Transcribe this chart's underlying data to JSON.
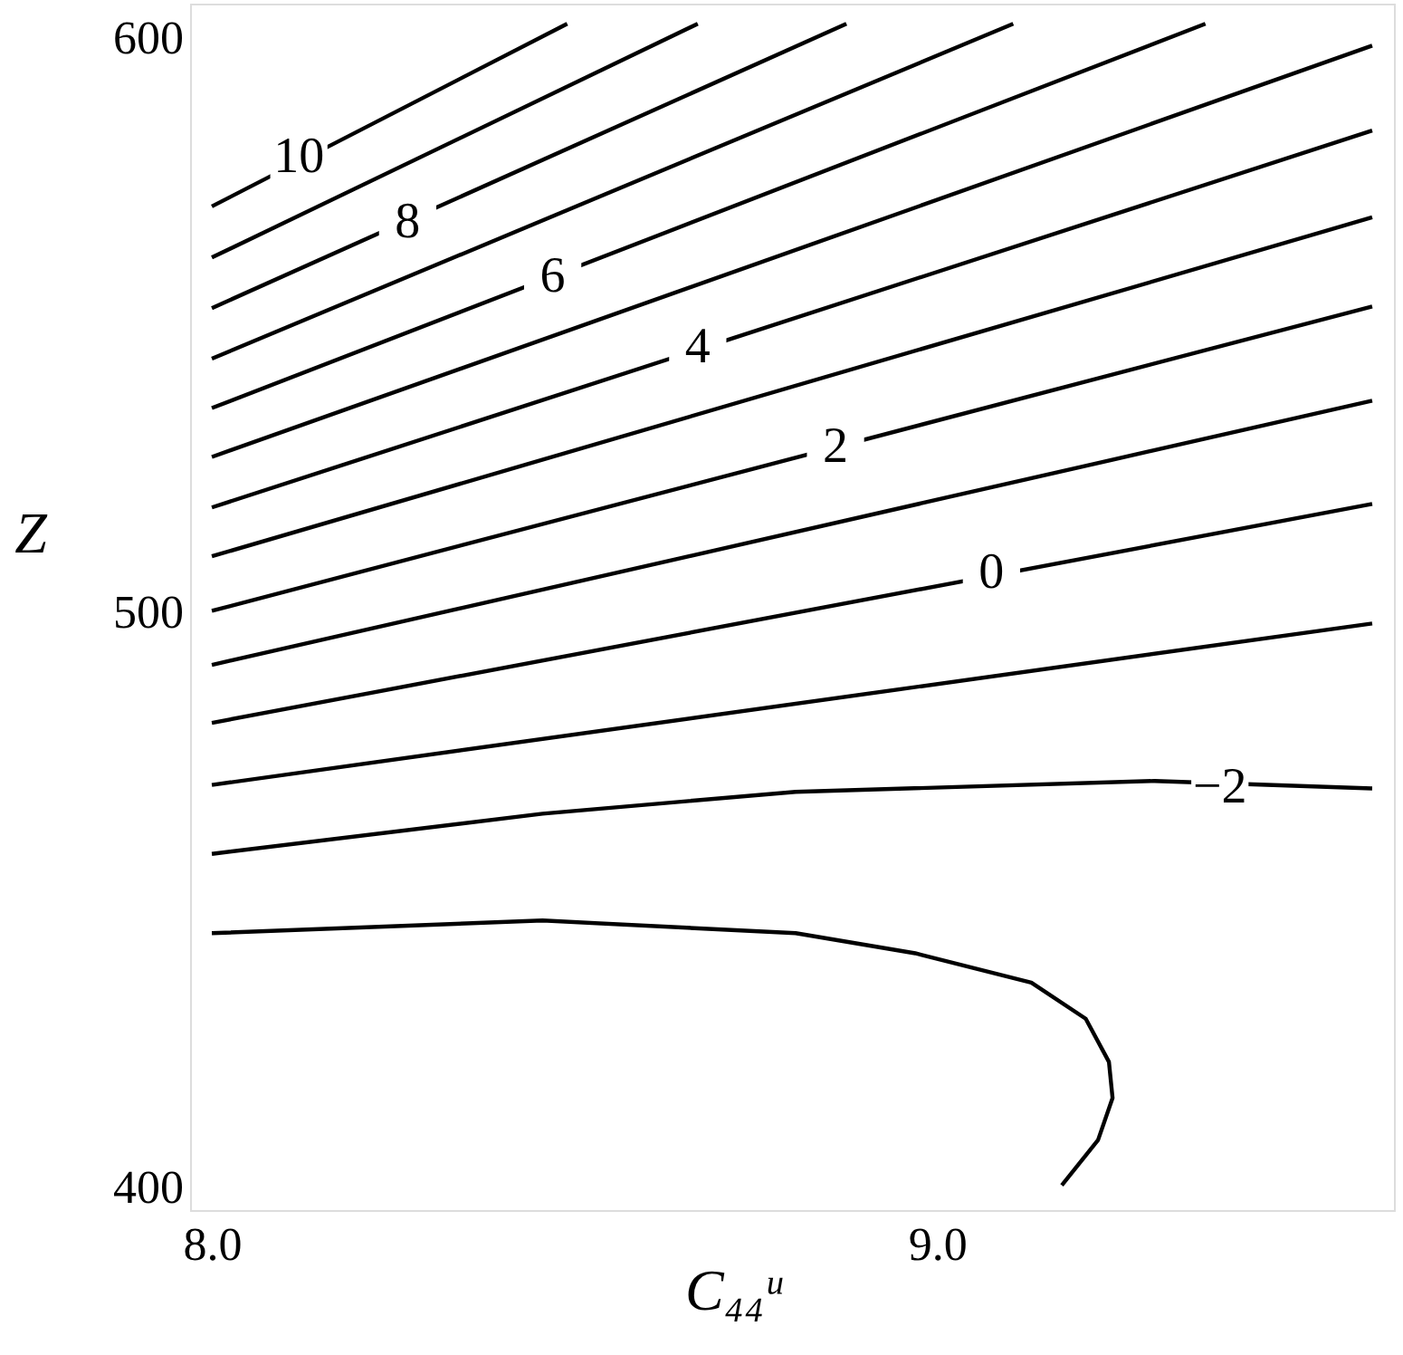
{
  "chart_data": {
    "type": "line",
    "xlabel": "C₄₄ᵘ",
    "ylabel": "Z",
    "xlim": [
      7.97,
      9.63
    ],
    "ylim": [
      396,
      606
    ],
    "xticks": [
      {
        "value": 8,
        "label": "8.0"
      },
      {
        "value": 9,
        "label": "9.0"
      }
    ],
    "yticks": [
      400,
      500,
      600
    ],
    "grid": false,
    "marker": "none",
    "line_style": "solid",
    "series": [
      {
        "color": "#000000",
        "x": [
          8.0,
          8.49
        ],
        "values": [
          570.7,
          602.5
        ]
      },
      {
        "color": "#000000",
        "x": [
          8.0,
          8.67
        ],
        "values": [
          561.8,
          602.5
        ]
      },
      {
        "color": "#000000",
        "x": [
          8.0,
          8.875
        ],
        "values": [
          553.0,
          602.5
        ]
      },
      {
        "color": "#000000",
        "x": [
          8.0,
          9.105
        ],
        "values": [
          544.2,
          602.5
        ]
      },
      {
        "color": "#000000",
        "x": [
          8.0,
          9.37
        ],
        "values": [
          535.6,
          602.5
        ]
      },
      {
        "color": "#000000",
        "x": [
          8.0,
          9.6
        ],
        "values": [
          527.1,
          598.7
        ]
      },
      {
        "color": "#000000",
        "x": [
          8.0,
          9.6
        ],
        "values": [
          518.3,
          583.9
        ]
      },
      {
        "color": "#000000",
        "x": [
          8.0,
          9.6
        ],
        "values": [
          509.8,
          568.8
        ]
      },
      {
        "color": "#000000",
        "x": [
          8.0,
          9.6
        ],
        "values": [
          500.3,
          553.3
        ]
      },
      {
        "color": "#000000",
        "x": [
          8.0,
          9.6
        ],
        "values": [
          490.9,
          536.9
        ]
      },
      {
        "color": "#000000",
        "x": [
          8.0,
          9.6
        ],
        "values": [
          480.8,
          518.9
        ]
      },
      {
        "color": "#000000",
        "x": [
          8.0,
          9.6
        ],
        "values": [
          470.0,
          498.1
        ]
      },
      {
        "color": "#000000",
        "x": [
          8.0,
          8.456,
          8.805,
          9.3,
          9.6
        ],
        "values": [
          458.0,
          465.0,
          468.8,
          470.7,
          469.4
        ]
      },
      {
        "color": "#000000",
        "x": [
          8.0,
          8.456,
          8.805,
          8.97,
          9.13,
          9.205,
          9.237,
          9.242,
          9.222,
          9.172
        ],
        "values": [
          444.2,
          446.4,
          444.2,
          440.7,
          435.6,
          429.3,
          421.8,
          415.5,
          408.2,
          400.3
        ]
      }
    ],
    "annotations": [
      {
        "text": "10",
        "x": 8.12,
        "y": 579.2
      },
      {
        "text": "8",
        "x": 8.27,
        "y": 567.8
      },
      {
        "text": "6",
        "x": 8.47,
        "y": 558.4
      },
      {
        "text": "4",
        "x": 8.67,
        "y": 546.1
      },
      {
        "text": "2",
        "x": 8.86,
        "y": 528.7
      },
      {
        "text": "0",
        "x": 9.075,
        "y": 506.9
      },
      {
        "text": "−2",
        "x": 9.39,
        "y": 469.4
      }
    ]
  }
}
